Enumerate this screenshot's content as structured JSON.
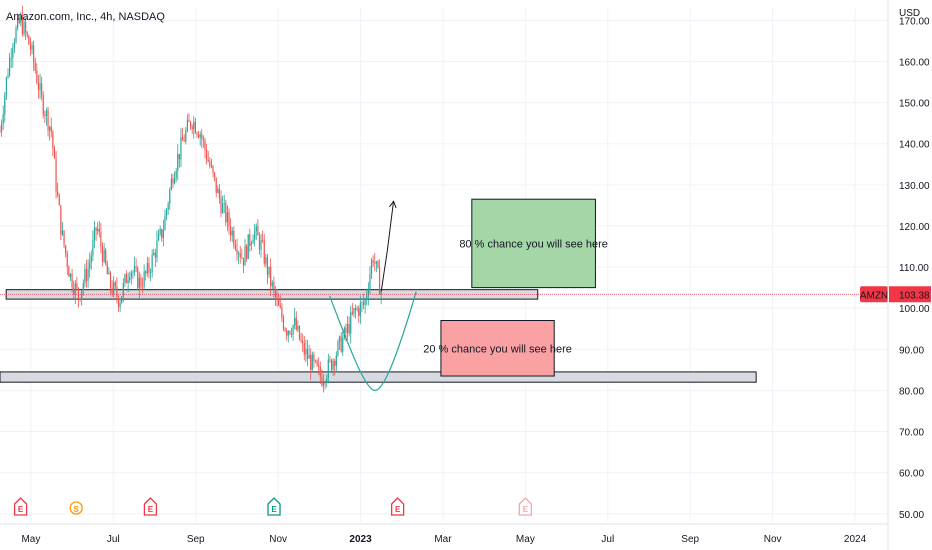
{
  "chart_data": {
    "type": "candlestick",
    "title": "Amazon.com, Inc., 4h, NASDAQ",
    "currency_label": "USD",
    "y_ticks": [
      "170.00",
      "160.00",
      "150.00",
      "140.00",
      "130.00",
      "120.00",
      "110.00",
      "100.00",
      "90.00",
      "80.00",
      "70.00",
      "60.00",
      "50.00"
    ],
    "y_tick_values": [
      170,
      160,
      150,
      140,
      130,
      120,
      110,
      100,
      90,
      80,
      70,
      60,
      50
    ],
    "ylim": [
      48,
      173
    ],
    "x_ticks": [
      "May",
      "Jul",
      "Sep",
      "Nov",
      "2023",
      "Mar",
      "May",
      "Jul",
      "Sep",
      "Nov",
      "2024"
    ],
    "x_tick_months": [
      0,
      2,
      4,
      6,
      8,
      10,
      12,
      14,
      16,
      18,
      20
    ],
    "x_range_months": [
      -0.75,
      20.8
    ],
    "grid": true,
    "colors": {
      "up": "#26a69a",
      "down": "#ef5350",
      "price_line": "#f23645",
      "green_box": "#a5d6a7",
      "red_box": "#faa1a4",
      "zone": "#d1d4dc"
    },
    "last_price": {
      "symbol": "AMZN",
      "value": "103.38"
    },
    "price_path": [
      [
        -0.75,
        143
      ],
      [
        -0.6,
        155
      ],
      [
        -0.45,
        165
      ],
      [
        -0.25,
        170
      ],
      [
        0.0,
        163
      ],
      [
        0.25,
        151
      ],
      [
        0.5,
        143
      ],
      [
        0.6,
        131
      ],
      [
        0.75,
        118
      ],
      [
        0.95,
        108
      ],
      [
        1.15,
        103
      ],
      [
        1.4,
        110
      ],
      [
        1.6,
        120
      ],
      [
        1.75,
        113
      ],
      [
        1.9,
        106
      ],
      [
        2.15,
        102
      ],
      [
        2.4,
        110
      ],
      [
        2.65,
        106
      ],
      [
        2.85,
        109
      ],
      [
        3.05,
        115
      ],
      [
        3.2,
        119
      ],
      [
        3.45,
        133
      ],
      [
        3.7,
        141
      ],
      [
        3.9,
        146
      ],
      [
        4.1,
        143
      ],
      [
        4.3,
        136
      ],
      [
        4.5,
        129
      ],
      [
        4.7,
        123
      ],
      [
        4.9,
        118
      ],
      [
        5.15,
        112
      ],
      [
        5.4,
        119
      ],
      [
        5.6,
        115
      ],
      [
        5.8,
        107
      ],
      [
        6.0,
        100
      ],
      [
        6.2,
        95
      ],
      [
        6.4,
        96
      ],
      [
        6.6,
        90
      ],
      [
        6.85,
        86
      ],
      [
        7.05,
        83
      ],
      [
        7.25,
        86
      ],
      [
        7.45,
        90
      ],
      [
        7.65,
        94
      ],
      [
        7.85,
        99
      ],
      [
        8.1,
        101
      ],
      [
        8.3,
        113
      ],
      [
        8.5,
        104
      ]
    ],
    "zones": [
      {
        "name": "resistance",
        "x": [
          -0.6,
          12.3
        ],
        "y": [
          102.2,
          104.5
        ]
      },
      {
        "name": "support",
        "x": [
          -0.75,
          17.6
        ],
        "y": [
          82,
          84.5
        ]
      }
    ],
    "boxes": [
      {
        "label": "80 % chance you will see here",
        "x": [
          10.7,
          13.7
        ],
        "y": [
          105,
          126.5
        ]
      },
      {
        "label": "20 % chance you will see here",
        "x": [
          9.95,
          12.7
        ],
        "y": [
          83.5,
          97
        ]
      }
    ],
    "arrow": [
      [
        8.5,
        104
      ],
      [
        8.65,
        114
      ],
      [
        8.8,
        126
      ]
    ],
    "curve": [
      [
        7.25,
        103
      ],
      [
        7.85,
        87
      ],
      [
        8.35,
        80
      ],
      [
        8.85,
        87
      ],
      [
        9.35,
        104
      ]
    ],
    "events": [
      {
        "label": "E",
        "month": -0.25,
        "color": "#f23645"
      },
      {
        "label": "S",
        "month": 1.1,
        "color": "#ff9800"
      },
      {
        "label": "E",
        "month": 2.9,
        "color": "#f23645"
      },
      {
        "label": "E",
        "month": 5.9,
        "color": "#089981"
      },
      {
        "label": "E",
        "month": 8.9,
        "color": "#f23645"
      },
      {
        "label": "E",
        "month": 12.0,
        "color": "#f7a5a8"
      }
    ]
  }
}
